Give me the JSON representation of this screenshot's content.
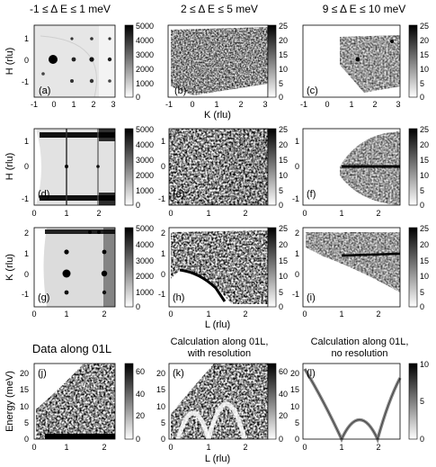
{
  "figure": {
    "column_titles": [
      "-1 ≤ Δ E ≤ 1 meV",
      "2 ≤ Δ E ≤ 5 meV",
      "9 ≤ Δ E ≤ 10 meV"
    ],
    "row4_titles": [
      "Data along 01L",
      "Calculation along 01L,",
      "with resolution",
      "Calculation along 01L,",
      "no resolution"
    ],
    "panel_labels": [
      "(a)",
      "(b)",
      "(c)",
      "(d)",
      "(e)",
      "(f)",
      "(g)",
      "(h)",
      "(i)",
      "(j)",
      "(k)",
      "(l)"
    ],
    "y_labels": [
      "H (rlu)",
      "H (rlu)",
      "K (rlu)",
      "Energy (meV)"
    ],
    "x_labels": [
      "K (rlu)",
      "L (rlu)",
      "L (rlu)"
    ],
    "colorbar_ticks_5000": [
      "5000",
      "4000",
      "3000",
      "2000",
      "1000",
      "0"
    ],
    "colorbar_ticks_25": [
      "25",
      "20",
      "15",
      "10",
      "5",
      "0"
    ],
    "colorbar_ticks_60": [
      "60",
      "40",
      "20",
      "0"
    ],
    "colorbar_ticks_10": [
      "10",
      "5",
      "0"
    ],
    "row1_xticks": [
      "-1",
      "0",
      "1",
      "2",
      "3"
    ],
    "row1_yticks": [
      "1",
      "0",
      "-1"
    ],
    "row2_xticks": [
      "0",
      "1",
      "2"
    ],
    "row2_yticks": [
      "1",
      "0",
      "-1"
    ],
    "row3_xticks": [
      "0",
      "1",
      "2"
    ],
    "row3_yticks": [
      "2",
      "1",
      "0",
      "-1"
    ],
    "row4_xticks": [
      "0",
      "1",
      "2"
    ],
    "row4_yticks": [
      "20",
      "15",
      "10",
      "5",
      "0"
    ]
  }
}
